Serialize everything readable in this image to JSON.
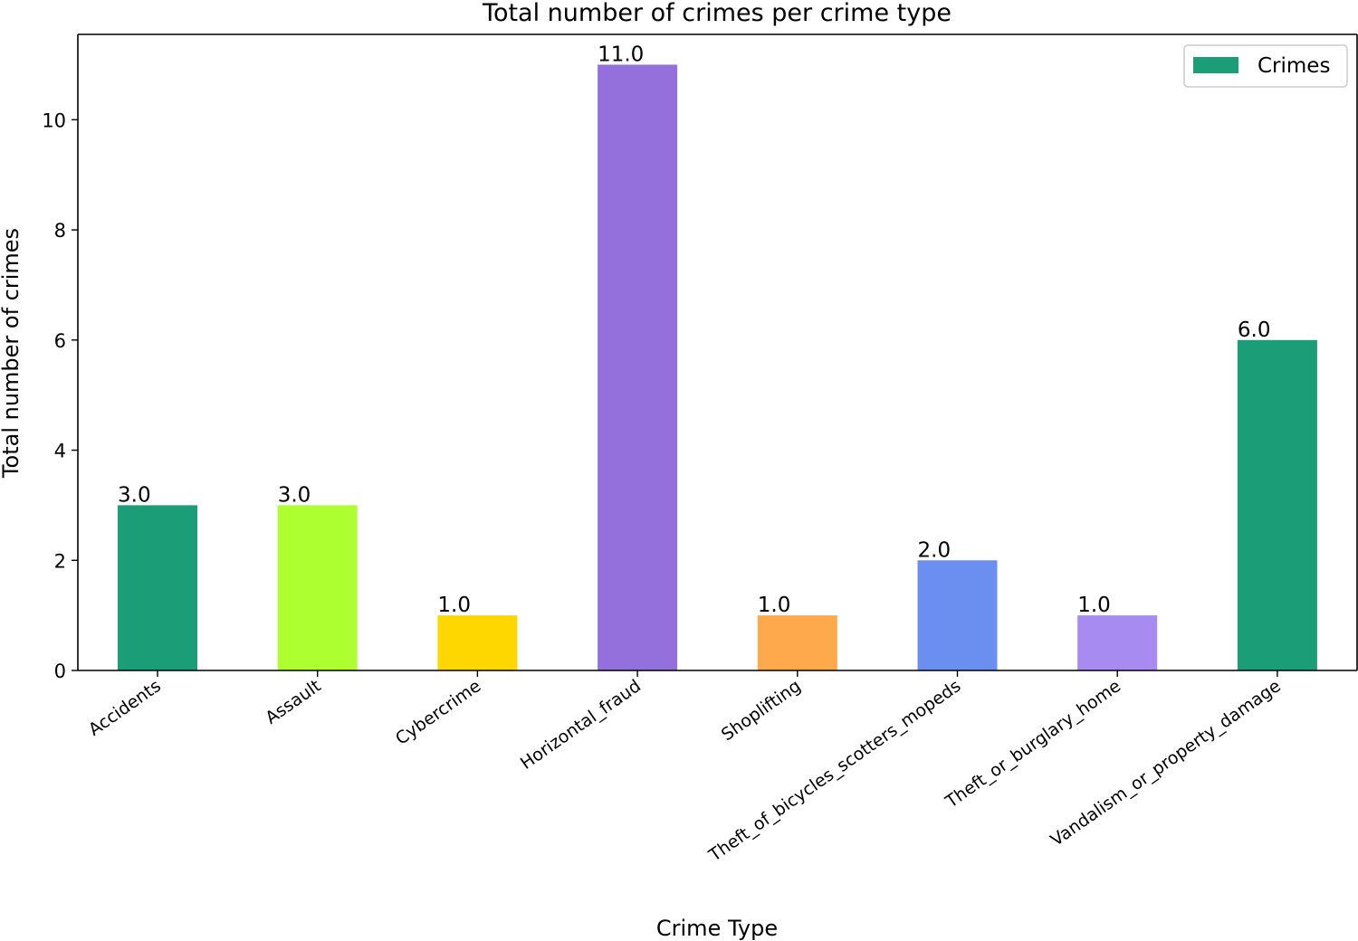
{
  "chart_data": {
    "type": "bar",
    "title": "Total number of crimes per crime type",
    "xlabel": "Crime Type",
    "ylabel": "Total number of crimes",
    "categories": [
      "Accidents",
      "Assault",
      "Cybercrime",
      "Horizontal_fraud",
      "Shoplifting",
      "Theft_of_bicycles_scotters_mopeds",
      "Theft_or_burglary_home",
      "Vandalism_or_property_damage"
    ],
    "series": [
      {
        "name": "Crimes",
        "values": [
          3.0,
          3.0,
          1.0,
          11.0,
          1.0,
          2.0,
          1.0,
          6.0
        ]
      }
    ],
    "data_labels": [
      "3.0",
      "3.0",
      "1.0",
      "11.0",
      "1.0",
      "2.0",
      "1.0",
      "6.0"
    ],
    "bar_colors": [
      "#1b9e77",
      "#adff2f",
      "#ffd700",
      "#9370db",
      "#ffa94d",
      "#6b8ff0",
      "#a78bf0",
      "#1b9e77"
    ],
    "legend_color": "#1b9e77",
    "yticks": [
      0,
      2,
      4,
      6,
      8,
      10
    ],
    "ylim": [
      0,
      11.55
    ],
    "grid": false,
    "legend_position": "top-right"
  }
}
